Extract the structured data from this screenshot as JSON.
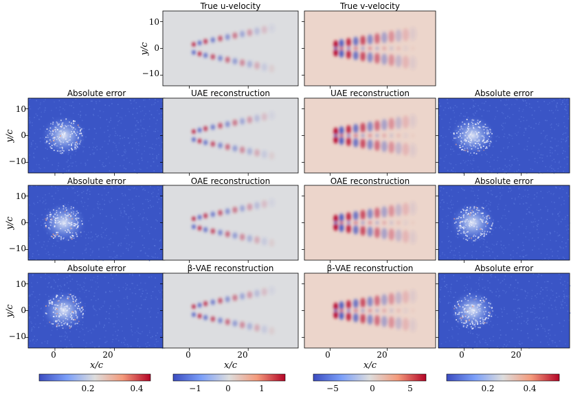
{
  "figure": {
    "row0": {
      "u_title": "True u-velocity",
      "v_title": "True v-velocity"
    },
    "rows": [
      {
        "label": "UAE",
        "left_error_title": "Absolute error",
        "u_title": "UAE reconstruction",
        "v_title": "UAE reconstruction",
        "right_error_title": "Absolute error"
      },
      {
        "label": "OAE",
        "left_error_title": "Absolute error",
        "u_title": "OAE reconstruction",
        "v_title": "OAE reconstruction",
        "right_error_title": "Absolute error"
      },
      {
        "label": "β-VAE",
        "left_error_title": "Absolute error",
        "u_title": "β-VAE reconstruction",
        "v_title": "β-VAE reconstruction",
        "right_error_title": "Absolute error"
      }
    ],
    "ylabel": "y/c",
    "xlabel": "x/c",
    "y_ticks": [
      "10",
      "0",
      "−10"
    ],
    "x_ticks": [
      "0",
      "20"
    ]
  },
  "colors": {
    "u_background": "#dcdde0",
    "v_background": "#ecd5cb",
    "error_background": "#3a55c6",
    "positive": "#b40426",
    "negative": "#3b4cc0"
  },
  "chart_data": {
    "type": "heatmap",
    "colormap": "coolwarm",
    "x_range": [
      -9,
      37
    ],
    "y_range": [
      -14,
      14
    ],
    "xlabel": "x/c",
    "ylabel": "y/c",
    "x_ticks": [
      0,
      20
    ],
    "y_ticks": [
      10,
      0,
      -10
    ],
    "colorbars": [
      {
        "field": "u absolute error",
        "range": [
          0.0,
          0.47
        ],
        "ticks": [
          "0.2",
          "0.4"
        ]
      },
      {
        "field": "u-velocity",
        "range": [
          -1.6,
          1.6
        ],
        "ticks": [
          "−1",
          "0",
          "1"
        ]
      },
      {
        "field": "v-velocity",
        "range": [
          -7.5,
          7.5
        ],
        "ticks": [
          "−5",
          "0",
          "5"
        ]
      },
      {
        "field": "v absolute error",
        "range": [
          0.0,
          0.55
        ],
        "ticks": [
          "0.2",
          "0.4"
        ]
      }
    ]
  }
}
